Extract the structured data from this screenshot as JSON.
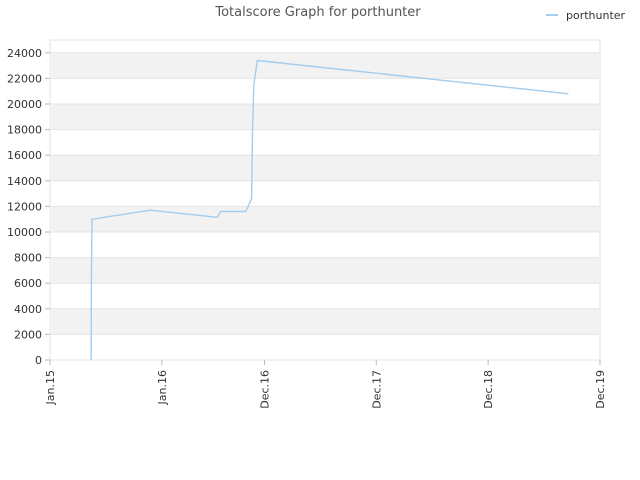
{
  "chart_data": {
    "type": "line",
    "title": "Totalscore Graph for porthunter",
    "legend": {
      "position": "top-right"
    },
    "x_axis": {
      "ticks": [
        {
          "label": "Jan.15",
          "value": "2015-01-01"
        },
        {
          "label": "Jan.16",
          "value": "2016-01-01"
        },
        {
          "label": "Dec.16",
          "value": "2016-12-01"
        },
        {
          "label": "Dec.17",
          "value": "2017-12-01"
        },
        {
          "label": "Dec.18",
          "value": "2018-12-01"
        },
        {
          "label": "Dec.19",
          "value": "2019-12-01"
        }
      ],
      "range": [
        "2015-01-01",
        "2019-12-01"
      ]
    },
    "y_axis": {
      "range": [
        0,
        25000
      ],
      "ticks": [
        0,
        2000,
        4000,
        6000,
        8000,
        10000,
        12000,
        14000,
        16000,
        18000,
        20000,
        22000,
        24000
      ]
    },
    "grid": true,
    "band_color": "#f2f2f2",
    "line_color": "#a3cdef",
    "series": [
      {
        "name": "porthunter",
        "points": [
          {
            "x": "2015-05-15",
            "y": 0
          },
          {
            "x": "2015-05-16",
            "y": 6500
          },
          {
            "x": "2015-05-18",
            "y": 11000
          },
          {
            "x": "2015-11-25",
            "y": 11700
          },
          {
            "x": "2016-06-30",
            "y": 11150
          },
          {
            "x": "2016-07-10",
            "y": 11600
          },
          {
            "x": "2016-10-01",
            "y": 11600
          },
          {
            "x": "2016-10-20",
            "y": 12600
          },
          {
            "x": "2016-10-23",
            "y": 17800
          },
          {
            "x": "2016-10-27",
            "y": 21500
          },
          {
            "x": "2016-11-08",
            "y": 23400
          },
          {
            "x": "2019-08-20",
            "y": 20800
          }
        ]
      }
    ]
  }
}
